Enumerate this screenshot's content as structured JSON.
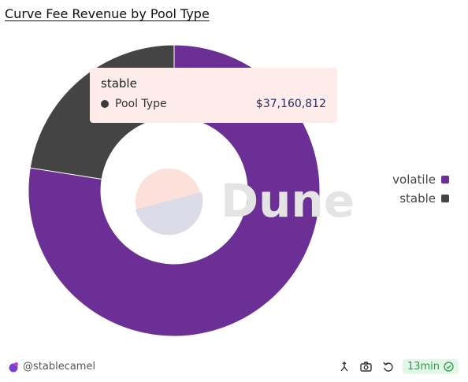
{
  "title": "Curve Fee Revenue by Pool Type",
  "chart_data": {
    "type": "pie",
    "donut": true,
    "series_name": "Pool Type",
    "slices": [
      {
        "label": "volatile",
        "color": "#6c2f96",
        "share": 0.775
      },
      {
        "label": "stable",
        "color": "#444444",
        "share": 0.225,
        "value": 37160812
      }
    ],
    "legend_position": "right"
  },
  "tooltip": {
    "title": "stable",
    "series_label": "Pool Type",
    "value_text": "$37,160,812"
  },
  "watermark": "Dune",
  "footer": {
    "author": "@stablecamel",
    "age": "13min"
  }
}
